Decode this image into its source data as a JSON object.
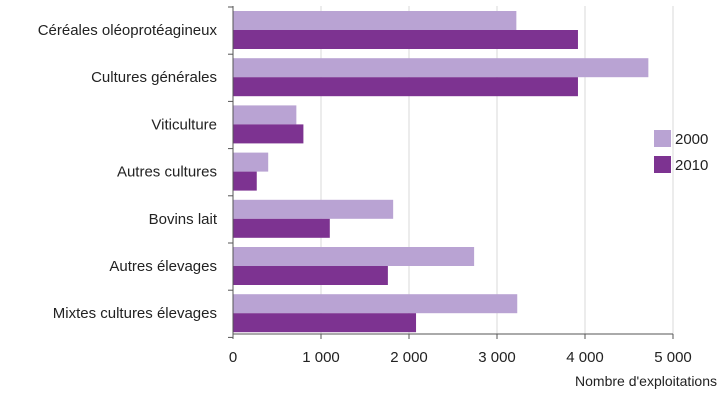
{
  "chart_data": {
    "type": "bar",
    "orientation": "horizontal",
    "title": "",
    "xlabel": "Nombre d'exploitations",
    "ylabel": "",
    "categories": [
      "Céréales oléoprotéagineux",
      "Cultures générales",
      "Viticulture",
      "Autres cultures",
      "Bovins lait",
      "Autres élevages",
      "Mixtes cultures élevages"
    ],
    "series": [
      {
        "name": "2000",
        "color": "#b9a3d3",
        "values": [
          3220,
          4720,
          720,
          400,
          1820,
          2740,
          3230
        ]
      },
      {
        "name": "2010",
        "color": "#7d3391",
        "values": [
          3920,
          3920,
          800,
          270,
          1100,
          1760,
          2080
        ]
      }
    ],
    "xlim": [
      0,
      5000
    ],
    "xticks": [
      0,
      1000,
      2000,
      3000,
      4000,
      5000
    ],
    "xtick_labels": [
      "0",
      "1 000",
      "2 000",
      "3 000",
      "4 000",
      "5 000"
    ],
    "grid": true,
    "grid_color": "#d9d9d9",
    "axis_color": "#555555",
    "legend_position": "right"
  }
}
